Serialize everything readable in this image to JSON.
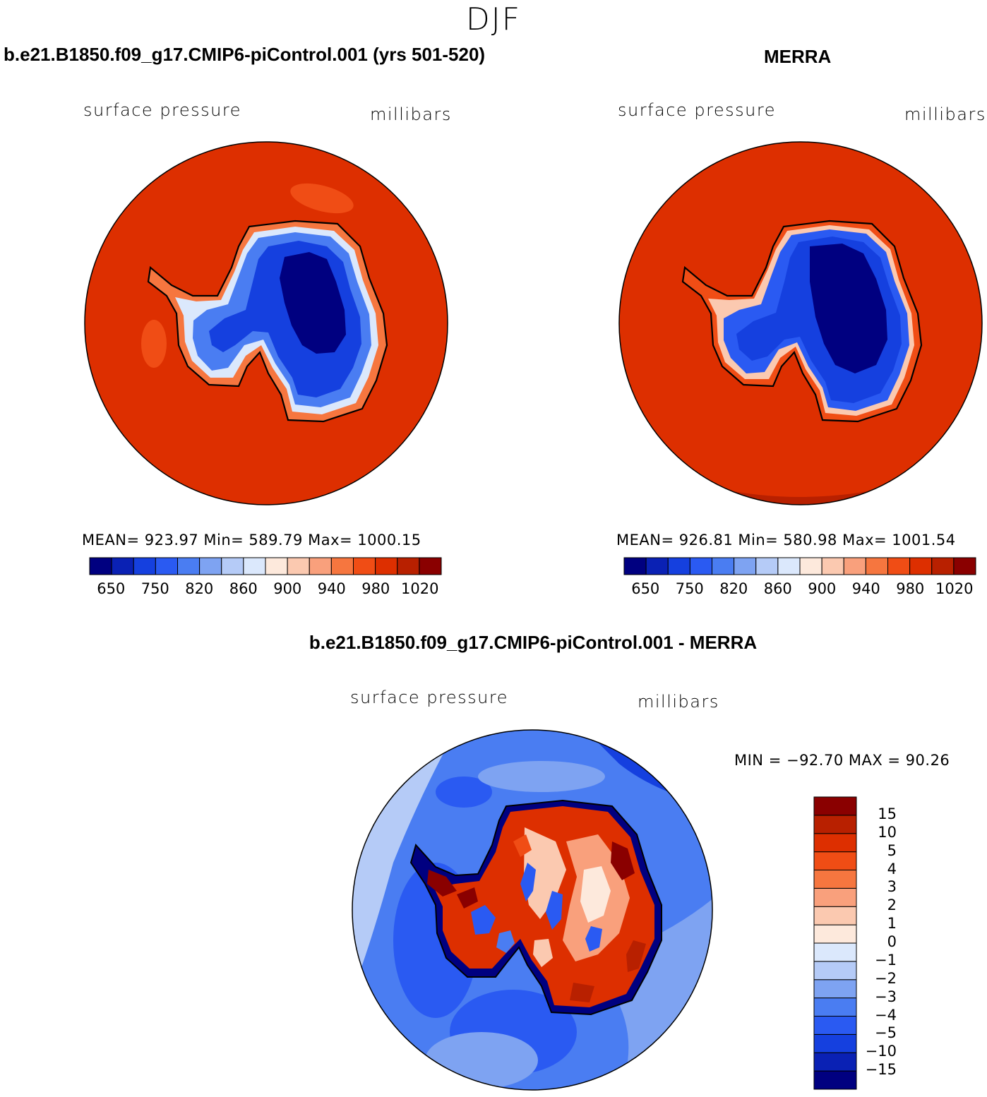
{
  "season": "DJF",
  "panels": [
    {
      "title": "b.e21.B1850.f09_g17.CMIP6-piControl.001 (yrs 501-520)",
      "variable": "surface pressure",
      "units": "millibars",
      "stats": "MEAN= 923.97   Min= 589.79   Max= 1000.15"
    },
    {
      "title": "MERRA",
      "variable": "surface pressure",
      "units": "millibars",
      "stats": "MEAN= 926.81   Min= 580.98   Max= 1001.54"
    }
  ],
  "colorbar": {
    "colors": [
      "#000080",
      "#0a21b4",
      "#1540df",
      "#2a5af2",
      "#4a7df2",
      "#7ea3f2",
      "#b5cbf7",
      "#dbe8fc",
      "#fde9dc",
      "#fbc9b0",
      "#f9a07c",
      "#f6763f",
      "#f04d15",
      "#dd2f00",
      "#b82000",
      "#8a0000"
    ],
    "tick_labels": [
      "650",
      "750",
      "820",
      "860",
      "900",
      "940",
      "980",
      "1020"
    ]
  },
  "diff": {
    "title": "b.e21.B1850.f09_g17.CMIP6-piControl.001 - MERRA",
    "variable": "surface pressure",
    "units": "millibars",
    "minmax": "MIN = −92.70 MAX =   90.26",
    "colors": [
      "#000080",
      "#0a21b4",
      "#1540df",
      "#2a5af2",
      "#4a7df2",
      "#7ea3f2",
      "#b5cbf7",
      "#dbe8fc",
      "#fde9dc",
      "#fbc9b0",
      "#f9a07c",
      "#f6763f",
      "#f04d15",
      "#dd2f00",
      "#b82000",
      "#8a0000"
    ],
    "tick_labels": [
      "−15",
      "−10",
      "−5",
      "−4",
      "−3",
      "−2",
      "−1",
      "0",
      "1",
      "2",
      "3",
      "4",
      "5",
      "10",
      "15"
    ]
  }
}
